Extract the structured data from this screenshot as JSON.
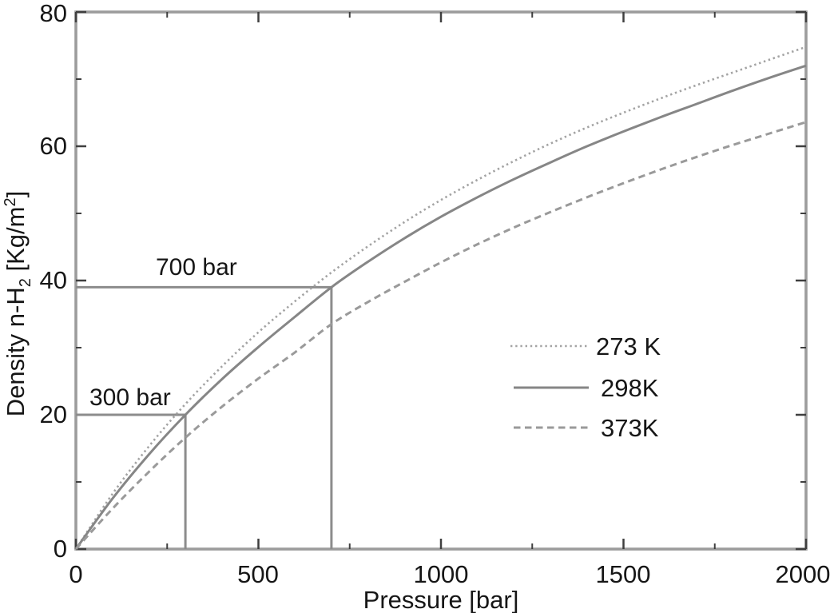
{
  "figure": {
    "background": "#ffffff",
    "text_color": "#161616",
    "frame_color": "#9c9c9c",
    "tick_color": "#3f3f3f",
    "annotation_line_color": "#8c8c8c"
  },
  "axes": {
    "x": {
      "title": "Pressure [bar]",
      "min": 0,
      "max": 2000,
      "major_ticks": [
        0,
        500,
        1000,
        1500,
        2000
      ],
      "minor_ticks": [
        250,
        750,
        1250,
        1750
      ],
      "tick_labels": [
        "0",
        "500",
        "1000",
        "1500",
        "2000"
      ]
    },
    "y": {
      "title_parts": {
        "prefix": "Density n-H",
        "sub": "2",
        "mid": " [Kg/m",
        "sup": "2",
        "suffix": "]"
      },
      "min": 0,
      "max": 80,
      "major_ticks": [
        0,
        20,
        40,
        60,
        80
      ],
      "minor_ticks": [
        10,
        30,
        50,
        70
      ],
      "tick_labels": [
        "0",
        "20",
        "40",
        "60",
        "80"
      ]
    }
  },
  "legend": {
    "items": [
      {
        "label": "273 K",
        "style": "dotted"
      },
      {
        "label": "298K",
        "style": "solid"
      },
      {
        "label": "373K",
        "style": "dashed"
      }
    ]
  },
  "annotations": [
    {
      "label": "700 bar",
      "pressure": 700,
      "density": 39
    },
    {
      "label": "300 bar",
      "pressure": 300,
      "density": 20
    }
  ],
  "chart_data": {
    "type": "line",
    "title": "",
    "xlabel": "Pressure [bar]",
    "ylabel": "Density n-H2 [Kg/m2]",
    "xlim": [
      0,
      2000
    ],
    "ylim": [
      0,
      80
    ],
    "grid": false,
    "legend_position": "center-right",
    "x": [
      0,
      100,
      200,
      300,
      400,
      500,
      600,
      700,
      800,
      900,
      1000,
      1100,
      1200,
      1300,
      1400,
      1500,
      1600,
      1700,
      1800,
      1900,
      2000
    ],
    "series": [
      {
        "name": "273 K",
        "style": "dotted",
        "color": "#a3a3a3",
        "values": [
          0,
          8.2,
          15.3,
          21.6,
          27.2,
          32.3,
          36.9,
          41.2,
          45.1,
          48.7,
          52.0,
          55.0,
          57.8,
          60.4,
          62.8,
          65.0,
          67.1,
          69.1,
          71.0,
          72.9,
          74.8
        ]
      },
      {
        "name": "298K",
        "style": "solid",
        "color": "#868686",
        "values": [
          0,
          7.5,
          14.1,
          20.0,
          25.3,
          30.1,
          34.6,
          39.0,
          42.8,
          46.3,
          49.5,
          52.4,
          55.1,
          57.6,
          60.0,
          62.2,
          64.3,
          66.3,
          68.3,
          70.2,
          72.0
        ]
      },
      {
        "name": "373K",
        "style": "dashed",
        "color": "#9a9a9a",
        "values": [
          0,
          6.0,
          11.5,
          16.6,
          21.2,
          25.4,
          29.3,
          33.5,
          36.8,
          39.8,
          42.7,
          45.4,
          47.9,
          50.2,
          52.4,
          54.5,
          56.5,
          58.4,
          60.2,
          61.9,
          63.6
        ]
      }
    ]
  }
}
